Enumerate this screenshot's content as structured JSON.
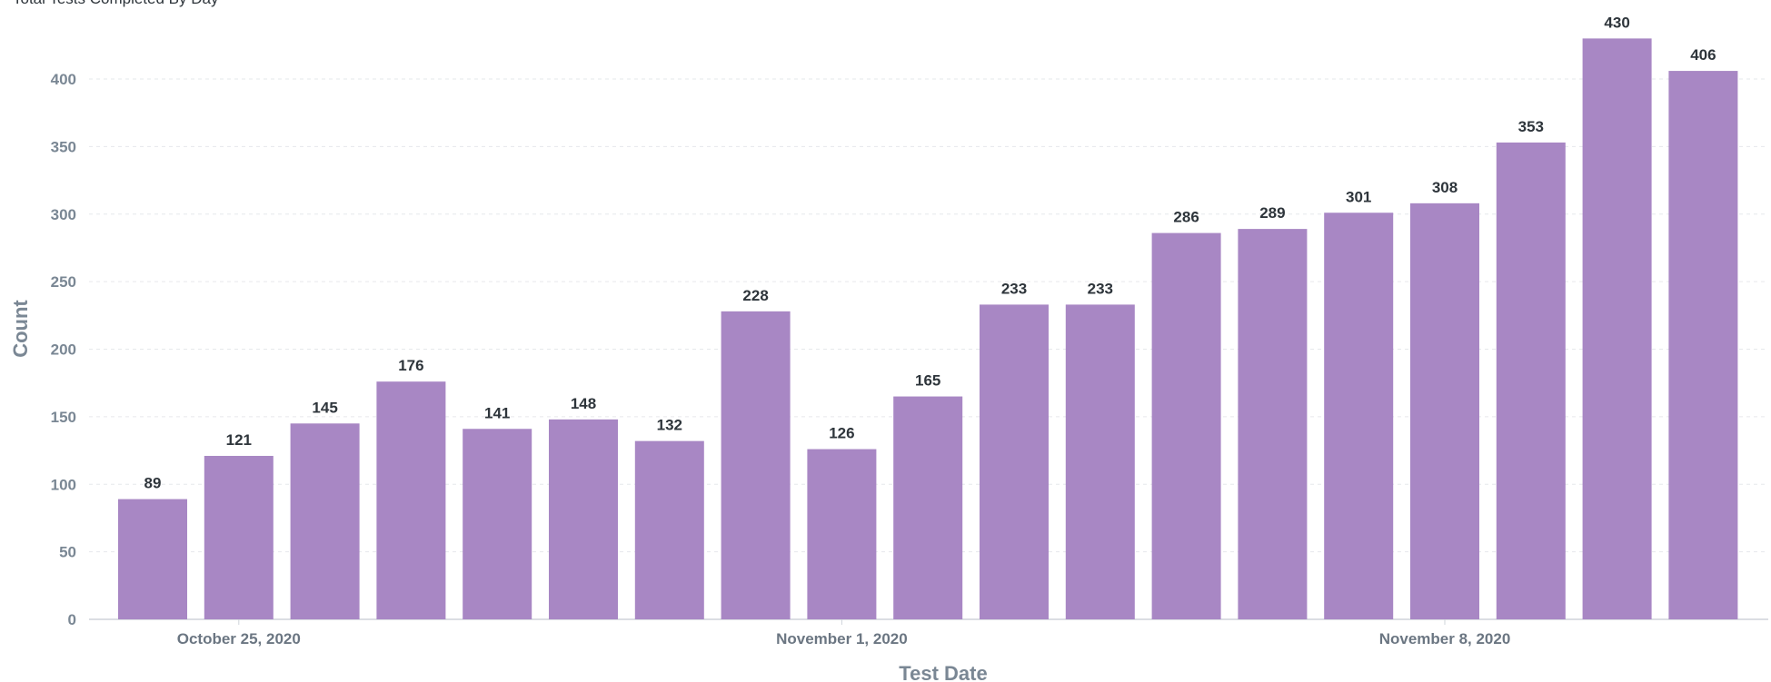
{
  "chart_data": {
    "type": "bar",
    "title": "Total Tests Completed By Day",
    "xlabel": "Test Date",
    "ylabel": "Count",
    "x": [
      "2020-10-24",
      "2020-10-25",
      "2020-10-26",
      "2020-10-27",
      "2020-10-28",
      "2020-10-29",
      "2020-10-30",
      "2020-10-31",
      "2020-11-01",
      "2020-11-02",
      "2020-11-03",
      "2020-11-04",
      "2020-11-05",
      "2020-11-06",
      "2020-11-07",
      "2020-11-08",
      "2020-11-09",
      "2020-11-10",
      "2020-11-11"
    ],
    "values": [
      89,
      121,
      145,
      176,
      141,
      148,
      132,
      228,
      126,
      165,
      233,
      233,
      286,
      289,
      301,
      308,
      353,
      430,
      406
    ],
    "x_tick_labels": [
      {
        "date": "2020-10-25",
        "label": "October 25, 2020"
      },
      {
        "date": "2020-11-01",
        "label": "November 1, 2020"
      },
      {
        "date": "2020-11-08",
        "label": "November 8, 2020"
      }
    ],
    "y_ticks": [
      0,
      50,
      100,
      150,
      200,
      250,
      300,
      350,
      400
    ],
    "ylim": [
      0,
      440
    ],
    "bar_color": "#a887c4",
    "grid": true,
    "data_labels": true,
    "legend": false
  }
}
